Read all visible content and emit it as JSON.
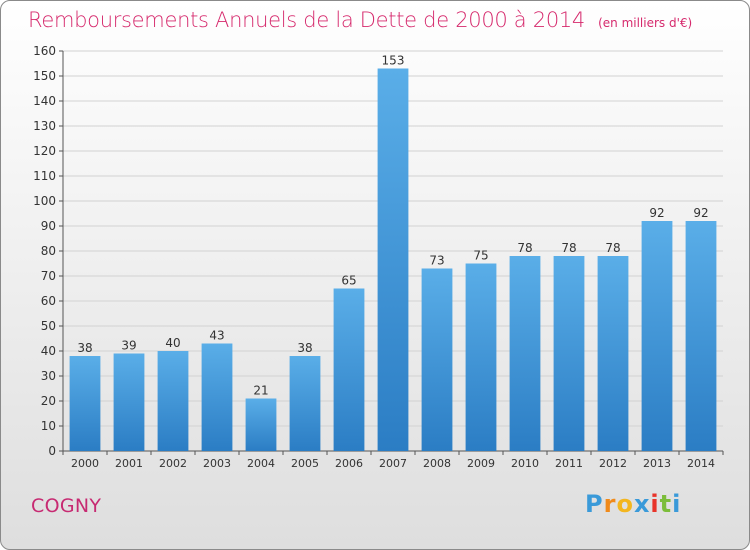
{
  "chart_data": {
    "type": "bar",
    "title": "Remboursements Annuels de la Dette de 2000 à 2014",
    "unit_note": "(en milliers d'€)",
    "categories": [
      "2000",
      "2001",
      "2002",
      "2003",
      "2004",
      "2005",
      "2006",
      "2007",
      "2008",
      "2009",
      "2010",
      "2011",
      "2012",
      "2013",
      "2014"
    ],
    "values": [
      38,
      39,
      40,
      43,
      21,
      38,
      65,
      153,
      73,
      75,
      78,
      78,
      78,
      92,
      92
    ],
    "ylim": [
      0,
      160
    ],
    "yticks": [
      0,
      10,
      20,
      30,
      40,
      50,
      60,
      70,
      80,
      90,
      100,
      110,
      120,
      130,
      140,
      150,
      160
    ],
    "grid": true,
    "xlabel": "",
    "ylabel": "",
    "bar_color_top": "#5aaee8",
    "bar_color_bottom": "#2b7dc4",
    "title_color": "#d62a6d"
  },
  "commune": "COGNY",
  "logo": {
    "letters": [
      "P",
      "r",
      "o",
      "x",
      "i",
      "t",
      "i"
    ],
    "colors": [
      "#3a9ad9",
      "#f08a1a",
      "#f3b61f",
      "#3a9ad9",
      "#e8342a",
      "#7cbd3a",
      "#3a9ad9"
    ]
  }
}
